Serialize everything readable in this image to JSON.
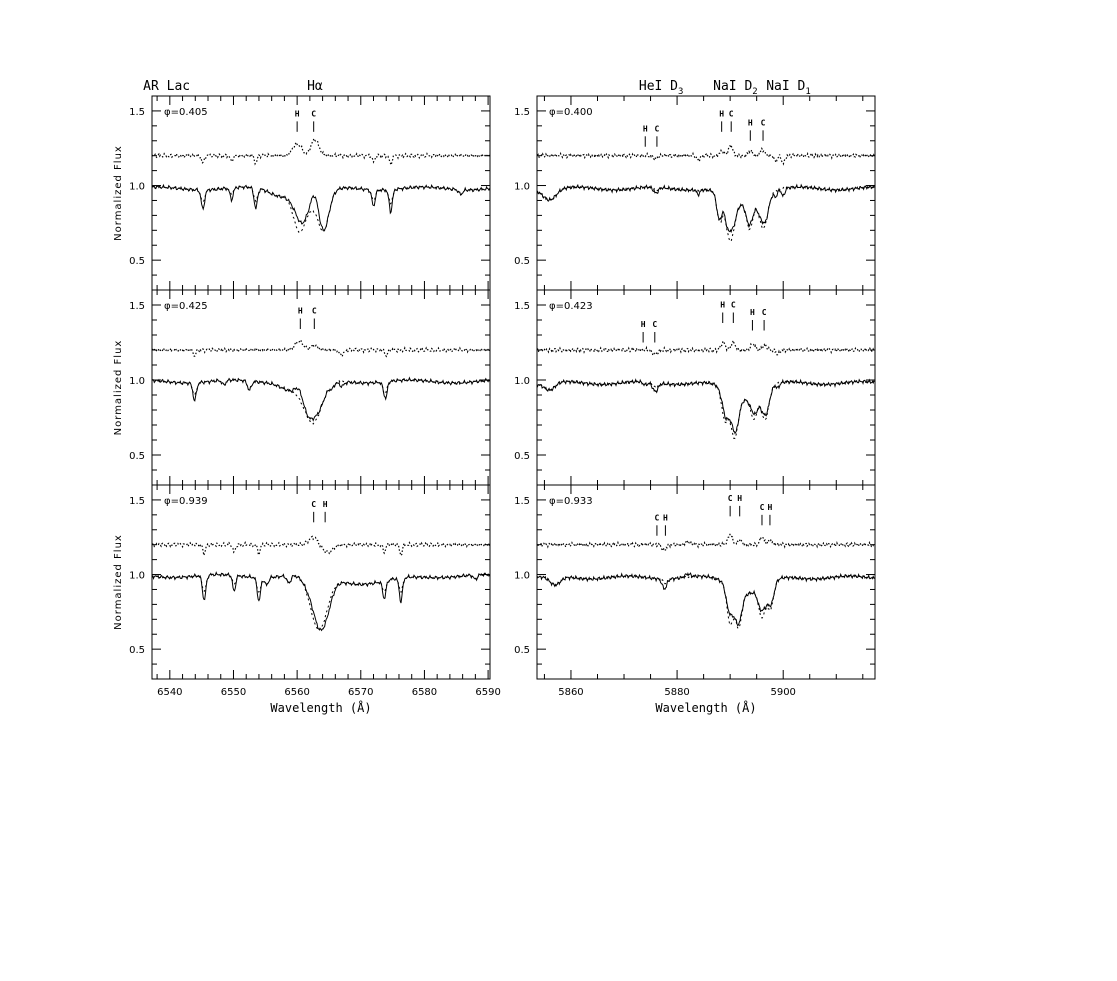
{
  "chart_data": {
    "type": "line",
    "ylabel": "Normalized Flux",
    "xlabel": "Wavelength (Å)",
    "ylim": [
      0.3,
      1.6
    ],
    "grid": false,
    "header": {
      "left": [
        {
          "text": "AR Lac",
          "x": 6539.5
        },
        {
          "text": "Hα",
          "x": 6562.8
        }
      ],
      "right": [
        {
          "text": "HeI D",
          "sub": "3",
          "x": 5877
        },
        {
          "text": "NaI D",
          "sub": "2",
          "x": 5891
        },
        {
          "text": "NaI D",
          "sub": "1",
          "x": 5901
        }
      ]
    },
    "columns": [
      {
        "xlim": [
          6537.2,
          6590.3
        ],
        "major": 10,
        "minor": 2,
        "ticklabels": [
          6540,
          6550,
          6560,
          6570,
          6580,
          6590
        ]
      },
      {
        "xlim": [
          5853.6,
          5917.3
        ],
        "major": 20,
        "minor": 5,
        "ticklabels": [
          5860,
          5880,
          5900
        ]
      }
    ],
    "yticklabels": [
      0.5,
      1.0,
      1.5
    ],
    "residual_offset": 1.2,
    "panels": [
      {
        "col": 0,
        "row": 0,
        "phase": "φ=0.405",
        "continuum": 0.98,
        "markers": [
          {
            "label": "H",
            "x": 6560.0,
            "flux": 1.43
          },
          {
            "label": "C",
            "x": 6562.6,
            "flux": 1.43
          }
        ],
        "synthetic_lines": [
          [
            6545.2,
            0.08,
            0.3
          ],
          [
            6549.7,
            0.04,
            0.3
          ],
          [
            6553.5,
            0.09,
            0.3
          ],
          [
            6557,
            0.04,
            1.5
          ],
          [
            6560.3,
            0.2,
            0.9
          ],
          [
            6564.2,
            0.22,
            0.8
          ],
          [
            6562.2,
            0.12,
            2
          ],
          [
            6572,
            0.07,
            0.3
          ],
          [
            6574.7,
            0.09,
            0.3
          ],
          [
            6585.7,
            0.03,
            0.3
          ]
        ],
        "residual_lines": [
          [
            6560,
            0.08,
            0.7
          ],
          [
            6562.8,
            0.11,
            0.6
          ],
          [
            6545.2,
            -0.05,
            0.2
          ],
          [
            6549.7,
            -0.04,
            0.2
          ],
          [
            6553.5,
            -0.05,
            0.2
          ],
          [
            6572,
            -0.04,
            0.2
          ],
          [
            6574.7,
            -0.06,
            0.2
          ]
        ]
      },
      {
        "col": 0,
        "row": 1,
        "phase": "φ=0.425",
        "continuum": 0.99,
        "markers": [
          {
            "label": "H",
            "x": 6560.5,
            "flux": 1.41
          },
          {
            "label": "C",
            "x": 6562.7,
            "flux": 1.41
          }
        ],
        "synthetic_lines": [
          [
            6543.9,
            0.08,
            0.3
          ],
          [
            6548.5,
            0.03,
            0.3
          ],
          [
            6552.5,
            0.06,
            0.3
          ],
          [
            6562.5,
            0.28,
            1.4
          ],
          [
            6559,
            0.05,
            1.5
          ],
          [
            6565.5,
            0.03,
            0.3
          ],
          [
            6573.8,
            0.08,
            0.3
          ]
        ],
        "residual_lines": [
          [
            6560.3,
            0.06,
            0.6
          ],
          [
            6562.7,
            0.03,
            0.6
          ],
          [
            6543.9,
            -0.04,
            0.2
          ],
          [
            6567,
            -0.03,
            0.4
          ],
          [
            6574,
            -0.04,
            0.2
          ]
        ]
      },
      {
        "col": 0,
        "row": 2,
        "phase": "φ=0.939",
        "continuum": 0.99,
        "markers": [
          {
            "label": "C",
            "x": 6562.6,
            "flux": 1.42
          },
          {
            "label": "H",
            "x": 6564.4,
            "flux": 1.42
          }
        ],
        "synthetic_lines": [
          [
            6545.4,
            0.11,
            0.3
          ],
          [
            6550.1,
            0.06,
            0.25
          ],
          [
            6554,
            0.1,
            0.3
          ],
          [
            6555.2,
            0.05,
            0.3
          ],
          [
            6558.7,
            0.05,
            0.3
          ],
          [
            6563.4,
            0.36,
            1.3
          ],
          [
            6571,
            0.05,
            4
          ],
          [
            6573.7,
            0.07,
            0.3
          ],
          [
            6576.3,
            0.09,
            0.3
          ],
          [
            6588,
            0.03,
            0.3
          ]
        ],
        "residual_lines": [
          [
            6562.5,
            0.05,
            0.7
          ],
          [
            6564.8,
            -0.05,
            0.8
          ],
          [
            6545.4,
            -0.06,
            0.2
          ],
          [
            6550.1,
            -0.05,
            0.2
          ],
          [
            6554,
            -0.06,
            0.2
          ],
          [
            6573.7,
            -0.05,
            0.2
          ],
          [
            6576.3,
            -0.07,
            0.2
          ]
        ]
      },
      {
        "col": 1,
        "row": 0,
        "phase": "φ=0.400",
        "continuum": 0.98,
        "markers": [
          {
            "label": "H",
            "x": 5874.0,
            "flux": 1.33
          },
          {
            "label": "C",
            "x": 5876.2,
            "flux": 1.33
          },
          {
            "label": "H",
            "x": 5888.4,
            "flux": 1.43
          },
          {
            "label": "C",
            "x": 5890.2,
            "flux": 1.43
          },
          {
            "label": "H",
            "x": 5893.8,
            "flux": 1.37
          },
          {
            "label": "C",
            "x": 5896.2,
            "flux": 1.37
          }
        ],
        "synthetic_lines": [
          [
            5856,
            0.07,
            1.2
          ],
          [
            5876,
            0.02,
            0.5
          ],
          [
            5888,
            0.18,
            0.5
          ],
          [
            5890,
            0.28,
            0.8
          ],
          [
            5892,
            0.1,
            3
          ],
          [
            5893.7,
            0.18,
            0.6
          ],
          [
            5896.3,
            0.22,
            0.8
          ]
        ],
        "residual_lines": [
          [
            5876,
            -0.02,
            0.4
          ],
          [
            5884,
            -0.03,
            0.3
          ],
          [
            5888.5,
            0.03,
            0.4
          ],
          [
            5890.1,
            0.07,
            0.4
          ],
          [
            5893.8,
            0.03,
            0.4
          ],
          [
            5896.1,
            0.04,
            0.4
          ],
          [
            5898.6,
            -0.04,
            0.3
          ],
          [
            5900,
            -0.05,
            0.3
          ]
        ]
      },
      {
        "col": 1,
        "row": 1,
        "phase": "φ=0.423",
        "continuum": 0.98,
        "markers": [
          {
            "label": "H",
            "x": 5873.6,
            "flux": 1.32
          },
          {
            "label": "C",
            "x": 5875.8,
            "flux": 1.32
          },
          {
            "label": "H",
            "x": 5888.6,
            "flux": 1.45
          },
          {
            "label": "C",
            "x": 5890.6,
            "flux": 1.45
          },
          {
            "label": "H",
            "x": 5894.2,
            "flux": 1.4
          },
          {
            "label": "C",
            "x": 5896.4,
            "flux": 1.4
          }
        ],
        "synthetic_lines": [
          [
            5856,
            0.05,
            1
          ],
          [
            5874,
            0.02,
            0.5
          ],
          [
            5876,
            0.03,
            0.5
          ],
          [
            5889,
            0.2,
            0.6
          ],
          [
            5890.8,
            0.28,
            0.7
          ],
          [
            5892.5,
            0.1,
            3
          ],
          [
            5894.5,
            0.15,
            0.6
          ],
          [
            5896.6,
            0.2,
            0.7
          ]
        ],
        "residual_lines": [
          [
            5875.8,
            -0.03,
            0.5
          ],
          [
            5888.7,
            0.05,
            0.4
          ],
          [
            5890.6,
            0.05,
            0.4
          ],
          [
            5894.3,
            0.04,
            0.4
          ],
          [
            5896.5,
            0.03,
            0.4
          ],
          [
            5899,
            -0.03,
            0.3
          ]
        ]
      },
      {
        "col": 1,
        "row": 2,
        "phase": "φ=0.933",
        "continuum": 0.98,
        "markers": [
          {
            "label": "C",
            "x": 5876.2,
            "flux": 1.33
          },
          {
            "label": "H",
            "x": 5877.8,
            "flux": 1.33
          },
          {
            "label": "C",
            "x": 5890.0,
            "flux": 1.46
          },
          {
            "label": "H",
            "x": 5891.8,
            "flux": 1.46
          },
          {
            "label": "C",
            "x": 5896.0,
            "flux": 1.4
          },
          {
            "label": "H",
            "x": 5897.5,
            "flux": 1.4
          }
        ],
        "synthetic_lines": [
          [
            5857,
            0.06,
            1
          ],
          [
            5877.8,
            0.03,
            0.4
          ],
          [
            5890,
            0.25,
            0.6
          ],
          [
            5891.6,
            0.24,
            0.6
          ],
          [
            5893.5,
            0.1,
            3
          ],
          [
            5896,
            0.2,
            0.6
          ],
          [
            5897.6,
            0.18,
            0.6
          ]
        ],
        "residual_lines": [
          [
            5877.5,
            -0.04,
            0.4
          ],
          [
            5882,
            0.02,
            0.5
          ],
          [
            5890,
            0.07,
            0.4
          ],
          [
            5891.8,
            0.03,
            0.4
          ],
          [
            5896,
            0.05,
            0.4
          ],
          [
            5897.5,
            0.03,
            0.4
          ]
        ]
      }
    ]
  }
}
